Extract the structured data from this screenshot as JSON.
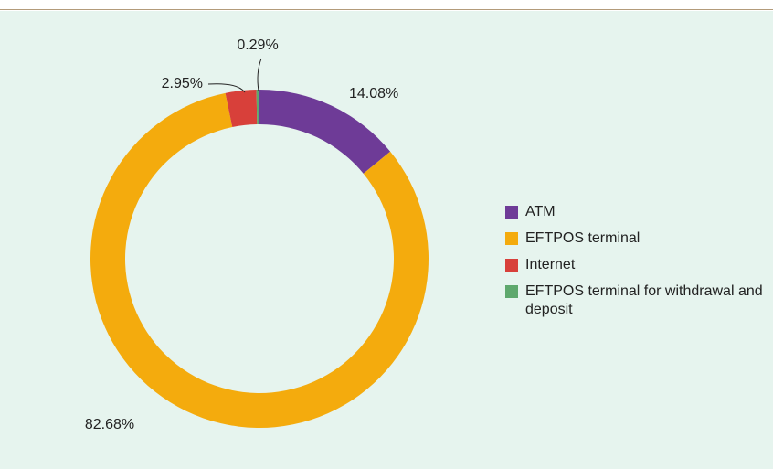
{
  "chart_data": {
    "type": "donut",
    "categories": [
      "ATM",
      "EFTPOS terminal",
      "Internet",
      "EFTPOS terminal for withdrawal and deposit"
    ],
    "values": [
      14.08,
      82.68,
      2.95,
      0.29
    ],
    "value_labels": [
      "14.08%",
      "82.68%",
      "2.95%",
      "0.29%"
    ],
    "colors": [
      "#6e3b97",
      "#f4ab0d",
      "#d8403a",
      "#5ea86d"
    ],
    "legend": "right"
  }
}
